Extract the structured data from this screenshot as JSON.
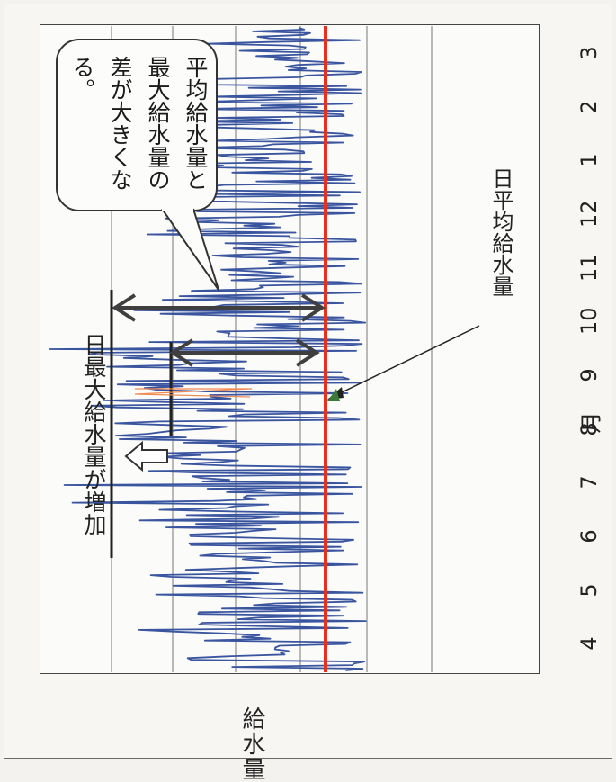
{
  "chart_data": {
    "type": "line",
    "orientation": "rotated-90-ccw",
    "ylabel": "給水量",
    "xlabel_unit": "月",
    "x_ticks": [
      "4",
      "5",
      "6",
      "7",
      "8",
      "9",
      "10",
      "11",
      "12",
      "1",
      "2",
      "3"
    ],
    "grid": true,
    "series": [
      {
        "name": "",
        "color": "#3a55a0",
        "monthly_max_approx": [
          0.8,
          0.76,
          0.84,
          1.03,
          1.08,
          1.05,
          0.9,
          0.7,
          0.73,
          0.63,
          0.7,
          0.5
        ],
        "monthly_min_approx": [
          0.08,
          0.12,
          0.14,
          0.2,
          0.3,
          0.28,
          0.1,
          0.1,
          0.1,
          0.05,
          0.03,
          0.05
        ]
      },
      {
        "name": "日平均給水量",
        "color": "#e8301e",
        "constant_value_approx": 0.0
      }
    ],
    "annotations": {
      "bubble": "平均給水量と最大給水量の差が大きくなる。",
      "max_increase": "日最大給水量が増加",
      "avg_label": "日平均給水量"
    }
  },
  "colors": {
    "series_line": "#3a55a0",
    "average_line": "#e8301e",
    "arrow": "#3f3f3f",
    "orange_spike": "#f08a50"
  }
}
